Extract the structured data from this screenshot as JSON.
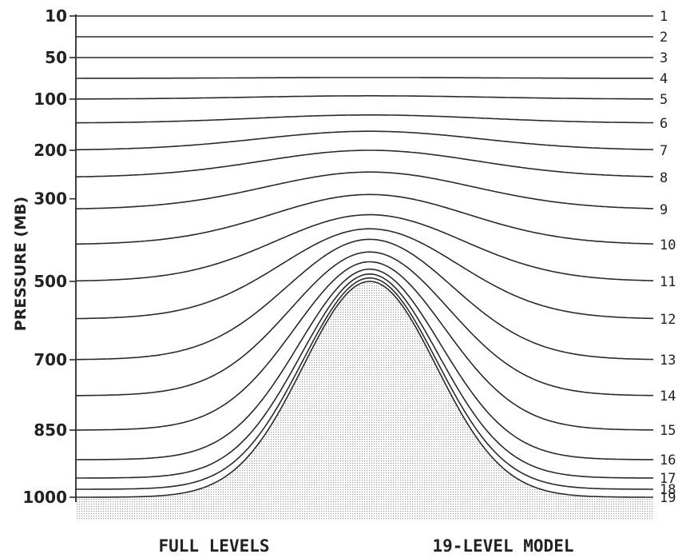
{
  "chart_data": {
    "type": "line",
    "ylabel": "PRESSURE (MB)",
    "y_scale": "pressure coordinate (top 10 mb, surface 1000 mb)",
    "yticks": [
      "10",
      "50",
      "100",
      "200",
      "300",
      "500",
      "700",
      "850",
      "1000"
    ],
    "captions": {
      "left": "FULL LEVELS",
      "right": "19-LEVEL MODEL"
    },
    "terrain": {
      "fill": "stippled",
      "peak_pressure_mb": 500,
      "base_pressure_mb": 1000
    },
    "levels": [
      {
        "label": "1",
        "flat_pressure_mb": 10,
        "peak_pressure_mb": 10
      },
      {
        "label": "2",
        "flat_pressure_mb": 30,
        "peak_pressure_mb": 30
      },
      {
        "label": "3",
        "flat_pressure_mb": 50,
        "peak_pressure_mb": 50
      },
      {
        "label": "4",
        "flat_pressure_mb": 75,
        "peak_pressure_mb": 74
      },
      {
        "label": "5",
        "flat_pressure_mb": 100,
        "peak_pressure_mb": 96
      },
      {
        "label": "6",
        "flat_pressure_mb": 150,
        "peak_pressure_mb": 133
      },
      {
        "label": "7",
        "flat_pressure_mb": 200,
        "peak_pressure_mb": 165
      },
      {
        "label": "8",
        "flat_pressure_mb": 250,
        "peak_pressure_mb": 200
      },
      {
        "label": "9",
        "flat_pressure_mb": 325,
        "peak_pressure_mb": 240
      },
      {
        "label": "10",
        "flat_pressure_mb": 425,
        "peak_pressure_mb": 290
      },
      {
        "label": "11",
        "flat_pressure_mb": 500,
        "peak_pressure_mb": 340
      },
      {
        "label": "12",
        "flat_pressure_mb": 600,
        "peak_pressure_mb": 380
      },
      {
        "label": "13",
        "flat_pressure_mb": 700,
        "peak_pressure_mb": 410
      },
      {
        "label": "14",
        "flat_pressure_mb": 775,
        "peak_pressure_mb": 440
      },
      {
        "label": "15",
        "flat_pressure_mb": 850,
        "peak_pressure_mb": 460
      },
      {
        "label": "16",
        "flat_pressure_mb": 925,
        "peak_pressure_mb": 475
      },
      {
        "label": "17",
        "flat_pressure_mb": 965,
        "peak_pressure_mb": 485
      },
      {
        "label": "18",
        "flat_pressure_mb": 990,
        "peak_pressure_mb": 493
      },
      {
        "label": "19",
        "flat_pressure_mb": 1000,
        "peak_pressure_mb": 500
      }
    ],
    "colors": {
      "lines": "#2a2a2a",
      "terrain_dots": "#9a9a9a",
      "background": "#ffffff"
    }
  }
}
